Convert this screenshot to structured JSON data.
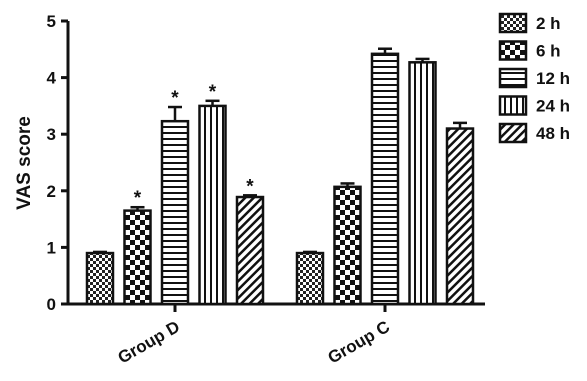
{
  "chart_data": {
    "type": "bar",
    "ylabel": "VAS score",
    "xlabel": "",
    "ylim": [
      0,
      5
    ],
    "yticks": [
      "0",
      "1",
      "2",
      "3",
      "4",
      "5"
    ],
    "categories": [
      "Group D",
      "Group C"
    ],
    "legend_position": "right",
    "series": [
      {
        "name": "2 h",
        "pattern": "dense-checker",
        "values": [
          0.9,
          0.9
        ],
        "errors": [
          0.02,
          0.02
        ],
        "significant": [
          false,
          false
        ]
      },
      {
        "name": "6 h",
        "pattern": "large-checker",
        "values": [
          1.65,
          2.07
        ],
        "errors": [
          0.06,
          0.06
        ],
        "significant": [
          true,
          false
        ]
      },
      {
        "name": "12 h",
        "pattern": "horizontal-lines",
        "values": [
          3.23,
          4.42
        ],
        "errors": [
          0.25,
          0.09
        ],
        "significant": [
          true,
          false
        ]
      },
      {
        "name": "24 h",
        "pattern": "vertical-lines",
        "values": [
          3.5,
          4.27
        ],
        "errors": [
          0.09,
          0.06
        ],
        "significant": [
          true,
          false
        ]
      },
      {
        "name": "48 h",
        "pattern": "diagonal-lines",
        "values": [
          1.89,
          3.1
        ],
        "errors": [
          0.03,
          0.1
        ],
        "significant": [
          true,
          false
        ]
      }
    ],
    "significance_marker": "*"
  }
}
